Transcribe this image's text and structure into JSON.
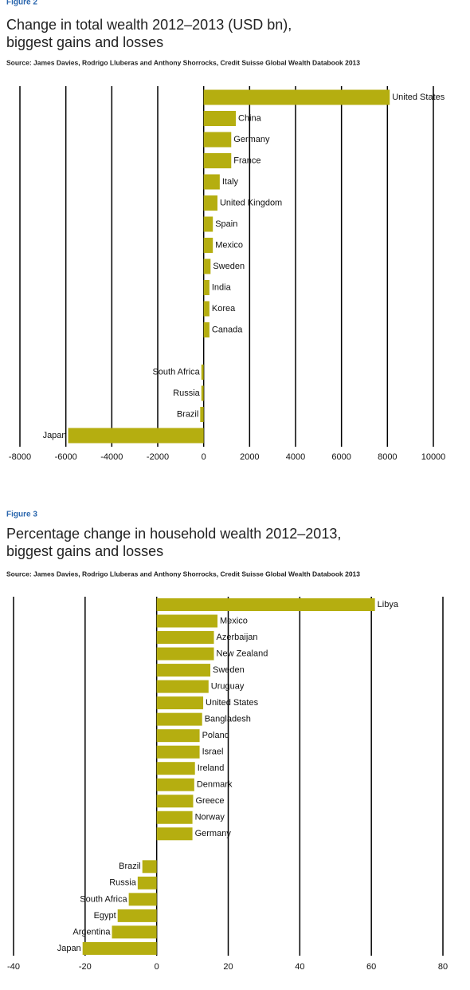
{
  "chart_data": [
    {
      "type": "barh",
      "figure": "Figure 2",
      "title": [
        "Change in total wealth 2012–2013 (USD bn),",
        "biggest gains and losses"
      ],
      "source": "Source: James Davies, Rodrigo Lluberas and Anthony Shorrocks, Credit Suisse Global Wealth Databook 2013",
      "categories": [
        "United States",
        "China",
        "Germany",
        "France",
        "Italy",
        "United Kingdom",
        "Spain",
        "Mexico",
        "Sweden",
        "India",
        "Korea",
        "Canada",
        null,
        "South Africa",
        "Russia",
        "Brazil",
        "Japan"
      ],
      "values": [
        8100,
        1400,
        1200,
        1200,
        700,
        600,
        400,
        400,
        300,
        250,
        250,
        250,
        null,
        -100,
        -100,
        -150,
        -5900
      ],
      "color": "#b5ae10",
      "xlim": [
        -8000,
        10000
      ],
      "xticks": [
        -8000,
        -6000,
        -4000,
        -2000,
        0,
        2000,
        4000,
        6000,
        8000,
        10000
      ],
      "grid": true
    },
    {
      "type": "barh",
      "figure": "Figure 3",
      "title": [
        "Percentage change in household wealth 2012–2013,",
        "biggest gains and losses"
      ],
      "source": "Source: James Davies, Rodrigo Lluberas and Anthony Shorrocks, Credit Suisse Global Wealth Databook 2013",
      "categories": [
        "Libya",
        "Mexico",
        "Azerbaijan",
        "New Zealand",
        "Sweden",
        "Uruguay",
        "United States",
        "Bangladesh",
        "Poland",
        "Israel",
        "Ireland",
        "Denmark",
        "Greece",
        "Norway",
        "Germany",
        null,
        "Brazil",
        "Russia",
        "South Africa",
        "Egypt",
        "Argentina",
        "Japan"
      ],
      "values": [
        61,
        17,
        16,
        16,
        15,
        14.5,
        13,
        12.7,
        12,
        12,
        10.7,
        10.5,
        10.2,
        10,
        10,
        null,
        -4,
        -5.3,
        -7.8,
        -10.9,
        -12.5,
        -20.7
      ],
      "color": "#b5ae10",
      "xlim": [
        -40,
        80
      ],
      "xticks": [
        -40,
        -20,
        0,
        20,
        40,
        60,
        80
      ],
      "grid": true
    }
  ]
}
